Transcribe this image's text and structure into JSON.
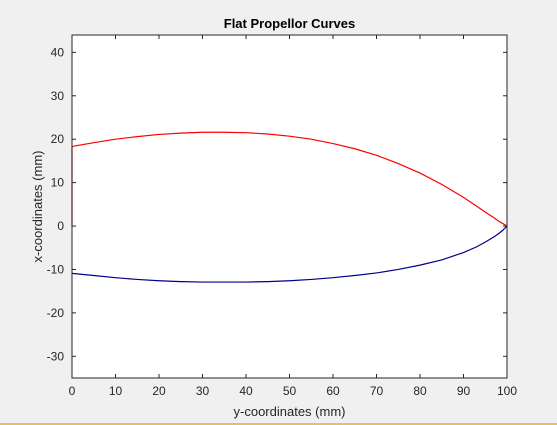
{
  "chart_data": {
    "type": "line",
    "title": "Flat Propellor Curves",
    "xlabel": "y-coordinates (mm)",
    "ylabel": "x-coordinates (mm)",
    "xlim": [
      0,
      100
    ],
    "ylim": [
      -35,
      44
    ],
    "xticks": [
      0,
      10,
      20,
      30,
      40,
      50,
      60,
      70,
      80,
      90,
      100
    ],
    "yticks": [
      40,
      30,
      20,
      10,
      0,
      -10,
      -20,
      -30
    ],
    "grid": false,
    "series": [
      {
        "color": "#ff0000",
        "x": [
          0,
          0,
          1,
          5,
          10,
          15,
          20,
          25,
          30,
          35,
          40,
          45,
          50,
          55,
          60,
          65,
          70,
          75,
          80,
          85,
          90,
          93,
          95,
          97,
          98,
          99,
          99.5,
          100
        ],
        "y": [
          0,
          18.3,
          18.5,
          19.2,
          20.0,
          20.6,
          21.1,
          21.4,
          21.6,
          21.6,
          21.5,
          21.2,
          20.7,
          20.0,
          19.0,
          17.8,
          16.3,
          14.4,
          12.2,
          9.6,
          6.6,
          4.6,
          3.2,
          1.9,
          1.2,
          0.6,
          0.3,
          0
        ]
      },
      {
        "color": "#00008b",
        "x": [
          0,
          5,
          10,
          15,
          20,
          25,
          30,
          35,
          40,
          45,
          50,
          55,
          60,
          65,
          70,
          75,
          80,
          85,
          90,
          93,
          95,
          97,
          98,
          99,
          99.5,
          100
        ],
        "y": [
          -10.9,
          -11.4,
          -11.9,
          -12.3,
          -12.6,
          -12.8,
          -12.9,
          -12.9,
          -12.9,
          -12.8,
          -12.6,
          -12.3,
          -11.9,
          -11.4,
          -10.8,
          -10.0,
          -9.0,
          -7.8,
          -6.1,
          -4.8,
          -3.7,
          -2.5,
          -1.8,
          -1.0,
          -0.5,
          0
        ]
      }
    ]
  }
}
